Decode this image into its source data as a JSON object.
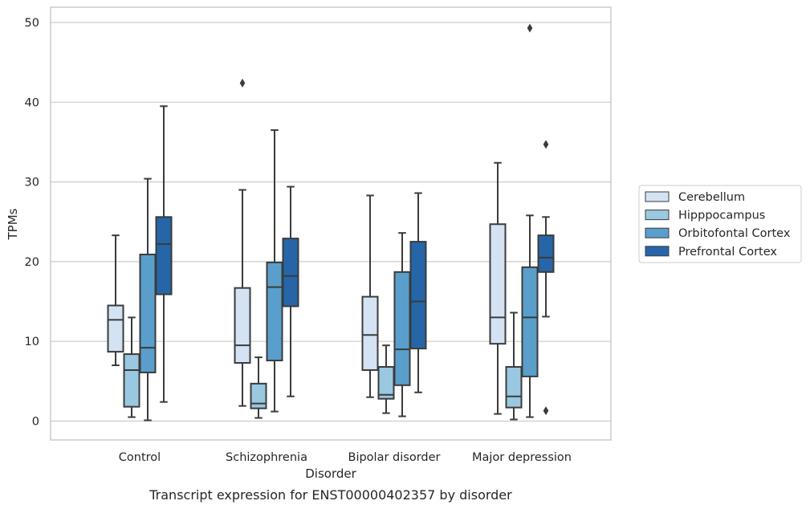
{
  "chart_data": {
    "type": "box",
    "xlabel": "Disorder",
    "ylabel": "TPMs",
    "caption": "Transcript expression for ENST00000402357 by disorder",
    "ylim": [
      -2.2,
      52
    ],
    "yticks": [
      0,
      10,
      20,
      30,
      40,
      50
    ],
    "grid": "horizontal",
    "legend_position": "right",
    "categories": [
      "Control",
      "Schizophrenia",
      "Bipolar disorder",
      "Major depression"
    ],
    "series": [
      {
        "name": "Cerebellum",
        "color": "#d3e3f3",
        "boxes": [
          {
            "whislo": 7.0,
            "q1": 8.7,
            "med": 12.7,
            "q3": 14.5,
            "whishi": 23.3,
            "fliers": []
          },
          {
            "whislo": 1.9,
            "q1": 7.3,
            "med": 9.5,
            "q3": 16.7,
            "whishi": 29.0,
            "fliers": [
              42.4
            ]
          },
          {
            "whislo": 3.0,
            "q1": 6.4,
            "med": 10.8,
            "q3": 15.6,
            "whishi": 28.3,
            "fliers": []
          },
          {
            "whislo": 0.9,
            "q1": 9.7,
            "med": 13.0,
            "q3": 24.7,
            "whishi": 32.4,
            "fliers": []
          }
        ]
      },
      {
        "name": "Hipppocampus",
        "color": "#9ac8e0",
        "boxes": [
          {
            "whislo": 0.5,
            "q1": 1.8,
            "med": 6.4,
            "q3": 8.4,
            "whishi": 13.0,
            "fliers": []
          },
          {
            "whislo": 0.4,
            "q1": 1.6,
            "med": 2.2,
            "q3": 4.7,
            "whishi": 8.0,
            "fliers": []
          },
          {
            "whislo": 1.0,
            "q1": 2.8,
            "med": 3.3,
            "q3": 6.8,
            "whishi": 9.5,
            "fliers": []
          },
          {
            "whislo": 0.2,
            "q1": 1.7,
            "med": 3.1,
            "q3": 6.8,
            "whishi": 13.6,
            "fliers": []
          }
        ]
      },
      {
        "name": "Orbitofontal Cortex",
        "color": "#5a9fcb",
        "boxes": [
          {
            "whislo": 0.1,
            "q1": 6.1,
            "med": 9.2,
            "q3": 20.9,
            "whishi": 30.4,
            "fliers": []
          },
          {
            "whislo": 1.2,
            "q1": 7.6,
            "med": 16.8,
            "q3": 19.9,
            "whishi": 36.5,
            "fliers": []
          },
          {
            "whislo": 0.6,
            "q1": 4.5,
            "med": 9.0,
            "q3": 18.7,
            "whishi": 23.6,
            "fliers": []
          },
          {
            "whislo": 0.5,
            "q1": 5.6,
            "med": 13.0,
            "q3": 19.3,
            "whishi": 25.8,
            "fliers": [
              49.3
            ]
          }
        ]
      },
      {
        "name": "Prefrontal Cortex",
        "color": "#2666a8",
        "boxes": [
          {
            "whislo": 2.4,
            "q1": 15.9,
            "med": 22.2,
            "q3": 25.6,
            "whishi": 39.5,
            "fliers": []
          },
          {
            "whislo": 3.1,
            "q1": 14.4,
            "med": 18.2,
            "q3": 22.9,
            "whishi": 29.4,
            "fliers": []
          },
          {
            "whislo": 3.6,
            "q1": 9.1,
            "med": 15.0,
            "q3": 22.5,
            "whishi": 28.6,
            "fliers": []
          },
          {
            "whislo": 13.1,
            "q1": 18.7,
            "med": 20.5,
            "q3": 23.3,
            "whishi": 25.6,
            "fliers": [
              34.7,
              1.3
            ]
          }
        ]
      }
    ]
  }
}
